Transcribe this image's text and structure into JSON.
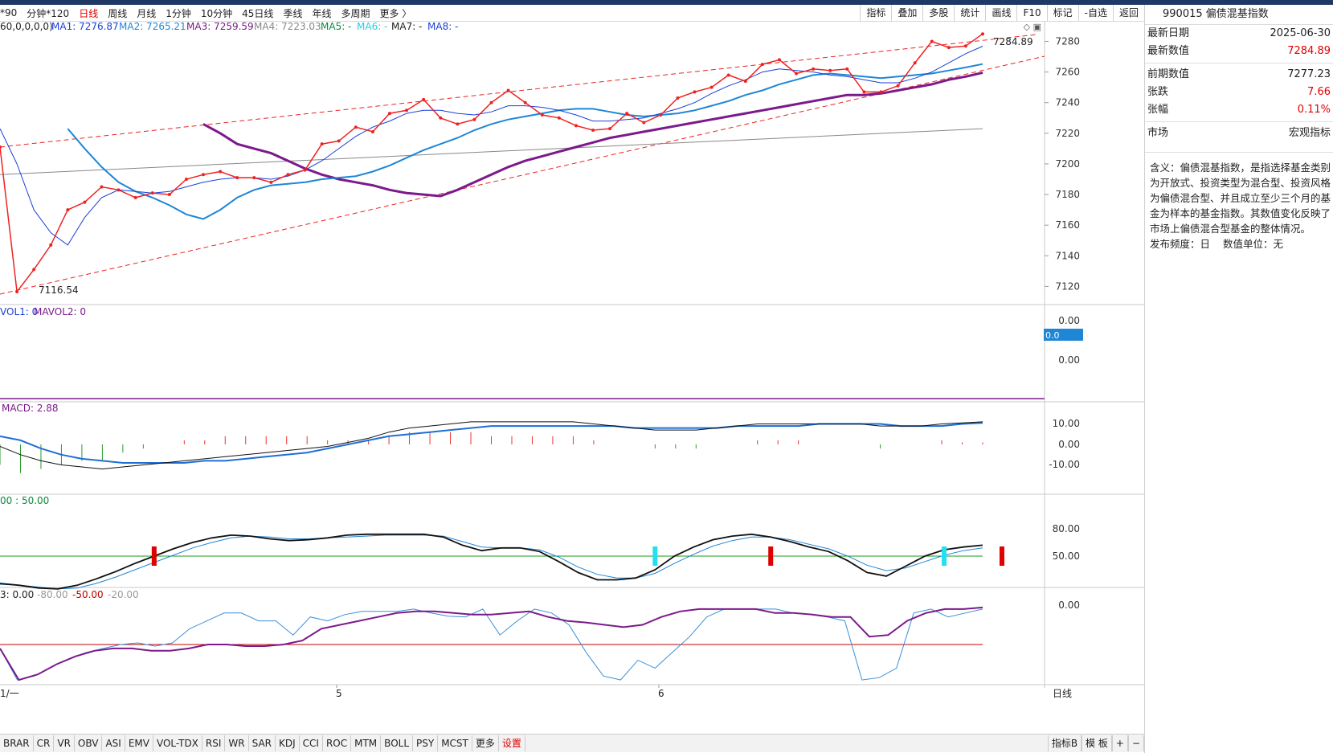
{
  "toolbar": {
    "periods": [
      "*90",
      "分钟*120",
      "日线",
      "周线",
      "月线",
      "1分钟",
      "10分钟",
      "45日线",
      "季线",
      "年线",
      "多周期",
      "更多 〉"
    ],
    "active_index": 2,
    "tools": [
      "指标",
      "叠加",
      "多股",
      "统计",
      "画线",
      "F10",
      "标记",
      "-自选",
      "返回"
    ]
  },
  "main_legend": {
    "params": "60,0,0,0,0)",
    "ma1": "MA1: 7276.87",
    "ma2": "MA2: 7265.21",
    "ma3": "MA3: 7259.59",
    "ma4": "MA4: 7223.03",
    "ma5": "MA5: -",
    "ma6": "MA6: -",
    "ma7": "MA7: -",
    "ma8": "MA8: -"
  },
  "price_annotations": {
    "high": "7284.89",
    "low": "7116.54"
  },
  "vol_legend": {
    "vol1": "VOL1: 0",
    "mavol2": "MAVOL2: 0"
  },
  "vol_axis": [
    "0.00",
    "0.00"
  ],
  "vol_marker": "0.0",
  "macd_legend": "MACD: 2.88",
  "macd_axis": [
    "10.00",
    "0.00",
    "-10.00"
  ],
  "kdj_legend": "00 : 50.00",
  "kdj_axis": [
    "80.00",
    "50.00"
  ],
  "wr_legend": {
    "v0": "3: 0.00",
    "v1": "-80.00",
    "v2": "-50.00",
    "v3": "-20.00"
  },
  "wr_axis": [
    "0.00"
  ],
  "x_axis": {
    "left": "1/一",
    "m5": "5",
    "m6": "6",
    "period": "日线"
  },
  "chart_data": {
    "type": "line",
    "price": [
      7211,
      7116.54,
      7131,
      7147,
      7170,
      7175,
      7185,
      7183,
      7178,
      7181,
      7180,
      7190,
      7193,
      7195,
      7191,
      7191,
      7188,
      7193,
      7196,
      7213,
      7215,
      7224,
      7221,
      7233,
      7235,
      7242,
      7230,
      7226,
      7229,
      7240,
      7248,
      7240,
      7232,
      7230,
      7225,
      7222,
      7223,
      7233,
      7227,
      7232,
      7243,
      7247,
      7250,
      7258,
      7254,
      7265,
      7268,
      7259,
      7262,
      7261,
      7262,
      7247,
      7247,
      7251,
      7266,
      7280,
      7276,
      7277,
      7284.89
    ],
    "ma1": [
      7223,
      7200,
      7170,
      7155,
      7147,
      7165,
      7178,
      7183,
      7182,
      7181,
      7182,
      7185,
      7188,
      7190,
      7191,
      7191,
      7190,
      7192,
      7196,
      7202,
      7210,
      7218,
      7224,
      7228,
      7233,
      7235,
      7235,
      7233,
      7232,
      7234,
      7238,
      7238,
      7237,
      7235,
      7232,
      7228,
      7228,
      7229,
      7230,
      7233,
      7236,
      7240,
      7246,
      7251,
      7255,
      7260,
      7262,
      7261,
      7260,
      7258,
      7257,
      7255,
      7253,
      7253,
      7256,
      7260,
      7266,
      7272,
      7276.87
    ],
    "ma2": [
      7223,
      7210,
      7198,
      7188,
      7182,
      7178,
      7173,
      7167,
      7164,
      7170,
      7178,
      7183,
      7186,
      7187,
      7188,
      7190,
      7191,
      7192,
      7195,
      7199,
      7204,
      7209,
      7213,
      7217,
      7222,
      7226,
      7229,
      7231,
      7233,
      7235,
      7236,
      7236,
      7234,
      7232,
      7231,
      7232,
      7233,
      7235,
      7238,
      7241,
      7245,
      7248,
      7252,
      7255,
      7258,
      7259,
      7258,
      7257,
      7256,
      7257,
      7258,
      7259,
      7261,
      7263,
      7265.21
    ],
    "ma3": [
      7226,
      7220,
      7213,
      7210,
      7207,
      7202,
      7197,
      7193,
      7190,
      7188,
      7186,
      7183,
      7181,
      7180,
      7179,
      7183,
      7188,
      7193,
      7198,
      7202,
      7205,
      7208,
      7211,
      7214,
      7217,
      7219,
      7221,
      7223,
      7225,
      7227,
      7229,
      7231,
      7233,
      7235,
      7237,
      7239,
      7241,
      7243,
      7245,
      7245,
      7246,
      7248,
      7250,
      7252,
      7255,
      7257,
      7259.59
    ],
    "ma4_start": 7193,
    "ma4_end": 7223.03,
    "price_ylim": [
      7110,
      7290
    ],
    "price_ticks": [
      7120,
      7140,
      7160,
      7180,
      7200,
      7220,
      7240,
      7260,
      7280
    ],
    "macd_diff": [
      -1,
      -5,
      -8,
      -10,
      -11,
      -12,
      -11,
      -10,
      -9,
      -8,
      -7,
      -6,
      -5,
      -4,
      -3,
      -2,
      -1,
      1,
      3,
      6,
      8,
      9,
      10,
      11,
      11,
      11,
      11,
      11,
      11,
      10,
      9,
      8,
      7,
      7,
      7,
      8,
      9,
      10,
      10,
      10,
      10,
      10,
      10,
      9,
      9,
      9,
      10,
      10.5,
      11
    ],
    "macd_dea": [
      4,
      2,
      -2,
      -5,
      -7,
      -8,
      -9,
      -9,
      -9,
      -9,
      -8,
      -8,
      -7,
      -6,
      -5,
      -4,
      -2,
      0,
      2,
      4,
      5,
      6,
      7,
      8,
      9,
      9,
      9,
      9,
      9,
      9,
      9,
      8,
      8,
      8,
      8,
      8,
      9,
      9,
      9,
      9,
      10,
      10,
      10,
      10,
      9,
      9,
      9,
      10,
      10.5
    ],
    "kdj_k": [
      20,
      18,
      15,
      14,
      18,
      25,
      33,
      42,
      50,
      58,
      65,
      70,
      73,
      72,
      69,
      67,
      68,
      70,
      73,
      74,
      74,
      74,
      74,
      71,
      62,
      56,
      59,
      59,
      55,
      44,
      32,
      24,
      24,
      26,
      35,
      50,
      60,
      68,
      72,
      74,
      71,
      66,
      60,
      55,
      45,
      32,
      28,
      39,
      50,
      57,
      60,
      62
    ],
    "kdj_d": [
      19,
      18,
      16,
      14,
      15,
      20,
      27,
      35,
      43,
      51,
      59,
      65,
      70,
      72,
      71,
      69,
      69,
      70,
      71,
      72,
      73,
      73,
      73,
      72,
      66,
      60,
      59,
      59,
      57,
      49,
      38,
      30,
      26,
      26,
      31,
      42,
      52,
      61,
      67,
      71,
      71,
      68,
      63,
      58,
      50,
      40,
      34,
      37,
      44,
      51,
      56,
      59
    ],
    "kdj_signals": [
      {
        "i": 8,
        "c": "red"
      },
      {
        "i": 34,
        "c": "cyan"
      },
      {
        "i": 40,
        "c": "red"
      },
      {
        "i": 49,
        "c": "cyan"
      },
      {
        "i": 52,
        "c": "red"
      }
    ],
    "wr1": [
      -55,
      -95,
      -90,
      -78,
      -68,
      -60,
      -55,
      -50,
      -48,
      -52,
      -48,
      -30,
      -20,
      -10,
      -10,
      -20,
      -20,
      -38,
      -15,
      -20,
      -12,
      -8,
      -8,
      -8,
      -5,
      -10,
      -14,
      -15,
      -5,
      -38,
      -20,
      -5,
      -10,
      -25,
      -60,
      -90,
      -95,
      -70,
      -80,
      -60,
      -40,
      -15,
      -5,
      -5,
      -5,
      -5,
      -10,
      -12,
      -15,
      -20,
      -95,
      -92,
      -80,
      -10,
      -5,
      -15,
      -10,
      -5
    ],
    "wr2": [
      -55,
      -95,
      -88,
      -75,
      -65,
      -58,
      -55,
      -55,
      -58,
      -58,
      -55,
      -50,
      -50,
      -52,
      -52,
      -50,
      -45,
      -30,
      -25,
      -20,
      -15,
      -10,
      -8,
      -8,
      -10,
      -12,
      -12,
      -10,
      -8,
      -15,
      -20,
      -22,
      -25,
      -28,
      -25,
      -15,
      -8,
      -5,
      -5,
      -5,
      -5,
      -10,
      -10,
      -12,
      -15,
      -15,
      -40,
      -38,
      -20,
      -10,
      -5,
      -5,
      -3
    ]
  },
  "sidebar": {
    "title": "990015 偏债混基指数",
    "rows1": [
      {
        "label": "最新日期",
        "value": "2025-06-30",
        "red": false
      },
      {
        "label": "最新数值",
        "value": "7284.89",
        "red": true
      }
    ],
    "rows2": [
      {
        "label": "前期数值",
        "value": "7277.23",
        "red": false
      },
      {
        "label": "张跌",
        "value": "7.66",
        "red": true
      },
      {
        "label": "张幅",
        "value": "0.11%",
        "red": true
      }
    ],
    "market": {
      "label": "市场",
      "value": "宏观指标"
    },
    "desc": "含义：偏债混基指数，是指选择基金类别为开放式、投资类型为混合型、投资风格为偏债混合型、并且成立至少三个月的基金为样本的基金指数。其数值变化反映了市场上偏债混合型基金的整体情况。",
    "freq_label": "发布频度：日",
    "unit_label": "数值单位：无"
  },
  "bottom": {
    "indicators": [
      "BRAR",
      "CR",
      "VR",
      "OBV",
      "ASI",
      "EMV",
      "VOL-TDX",
      "RSI",
      "WR",
      "SAR",
      "KDJ",
      "CCI",
      "ROC",
      "MTM",
      "BOLL",
      "PSY",
      "MCST",
      "更多",
      "设置"
    ],
    "right": [
      "指标B",
      "模 板",
      "+",
      "−"
    ]
  },
  "colors": {
    "price": "#ee2222",
    "ma1": "#1a3fd8",
    "ma2": "#1f86d6",
    "ma3": "#7b1a8a",
    "ma4": "#888888",
    "macd_diff": "#111111",
    "macd_dea": "#1f6fd6",
    "kdj_k": "#111111",
    "kdj_d": "#1f86d6",
    "wr1": "#3a8fd8",
    "wr2": "#7b1a8a"
  }
}
